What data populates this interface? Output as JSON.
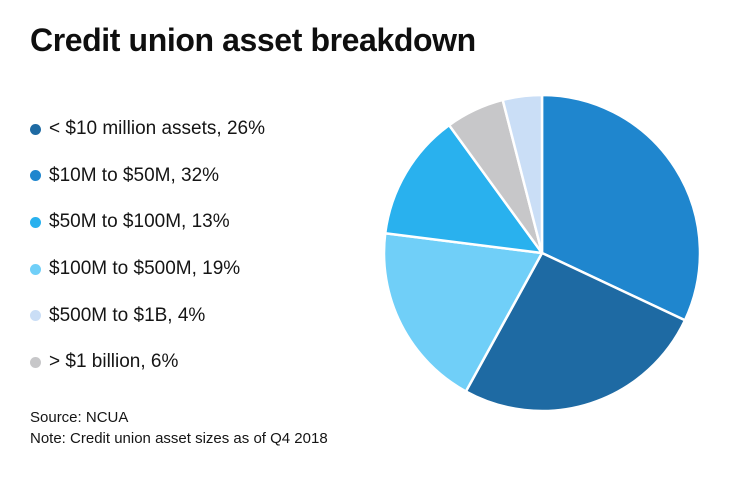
{
  "header": {
    "title": "Credit union asset breakdown"
  },
  "chart_data": {
    "type": "pie",
    "title": "Credit union asset breakdown",
    "legend_position": "left",
    "start_angle_deg": 0,
    "direction": "clockwise",
    "series": [
      {
        "label": "< $10 million assets",
        "value": 26,
        "percent_text": "26%",
        "color": "#1e6aa3",
        "legend_text": "< $10 million assets, 26%"
      },
      {
        "label": "$10M to $50M",
        "value": 32,
        "percent_text": "32%",
        "color": "#1f86ce",
        "legend_text": "$10M to $50M, 32%"
      },
      {
        "label": "$50M to $100M",
        "value": 13,
        "percent_text": "13%",
        "color": "#29b1ee",
        "legend_text": "$50M to $100M, 13%"
      },
      {
        "label": "$100M to $500M",
        "value": 19,
        "percent_text": "19%",
        "color": "#70cff8",
        "legend_text": "$100M to $500M, 19%"
      },
      {
        "label": "$500M to $1B",
        "value": 4,
        "percent_text": "4%",
        "color": "#cadef6",
        "legend_text": "$500M to $1B, 4%"
      },
      {
        "label": "> $1 billion",
        "value": 6,
        "percent_text": "6%",
        "color": "#c7c7c9",
        "legend_text": "> $1 billion, 6%"
      }
    ],
    "draw_order": [
      1,
      0,
      3,
      2,
      5,
      4
    ],
    "slice_border_color": "#ffffff",
    "slice_border_width": 2.5
  },
  "footer": {
    "source": "Source: NCUA",
    "note": "Note: Credit union asset sizes as of Q4 2018"
  }
}
